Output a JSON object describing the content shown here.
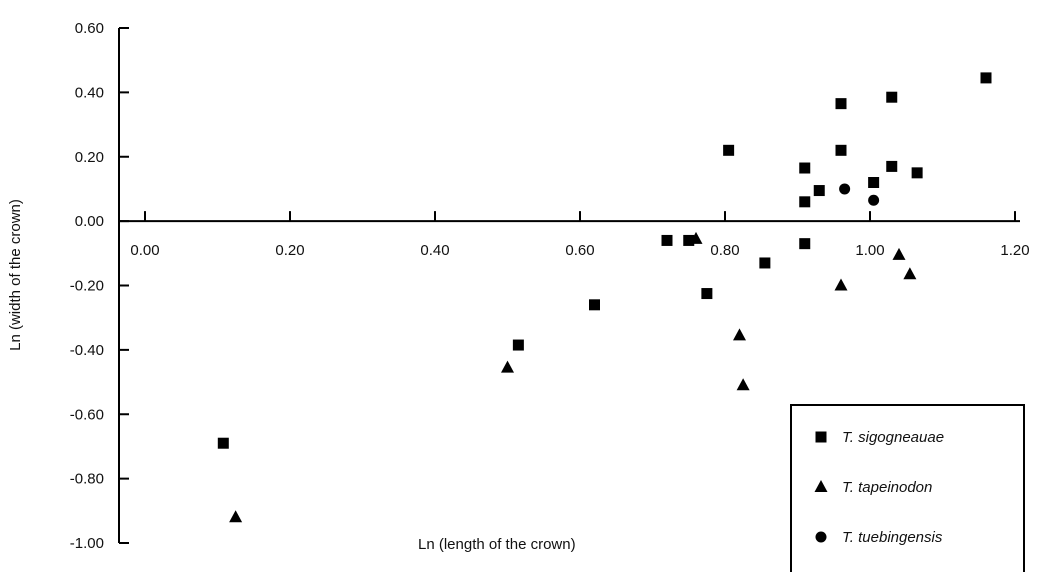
{
  "chart_data": {
    "type": "scatter",
    "xlabel": "Ln (length of the crown)",
    "ylabel": "Ln (width of the crown)",
    "xlim": [
      0.0,
      1.2
    ],
    "ylim": [
      -1.0,
      0.6
    ],
    "x_ticks": [
      "0.00",
      "0.20",
      "0.40",
      "0.60",
      "0.80",
      "1.00",
      "1.20"
    ],
    "y_ticks": [
      "0.60",
      "0.40",
      "0.20",
      "0.00",
      "-0.20",
      "-0.40",
      "-0.60",
      "-0.80",
      "-1.00"
    ],
    "grid": false,
    "legend_position": "bottom-right",
    "series": [
      {
        "name": "T. sigogneauae",
        "marker": "square",
        "points": [
          [
            0.108,
            -0.69
          ],
          [
            0.515,
            -0.385
          ],
          [
            0.62,
            -0.26
          ],
          [
            0.72,
            -0.06
          ],
          [
            0.75,
            -0.06
          ],
          [
            0.775,
            -0.225
          ],
          [
            0.805,
            0.22
          ],
          [
            0.855,
            -0.13
          ],
          [
            0.91,
            0.165
          ],
          [
            0.91,
            0.06
          ],
          [
            0.91,
            -0.07
          ],
          [
            0.93,
            0.095
          ],
          [
            0.96,
            0.365
          ],
          [
            0.96,
            0.22
          ],
          [
            1.005,
            0.12
          ],
          [
            1.03,
            0.385
          ],
          [
            1.03,
            0.17
          ],
          [
            1.065,
            0.15
          ],
          [
            1.16,
            0.445
          ]
        ]
      },
      {
        "name": "T. tapeinodon",
        "marker": "triangle",
        "points": [
          [
            0.125,
            -0.92
          ],
          [
            0.5,
            -0.455
          ],
          [
            0.76,
            -0.055
          ],
          [
            0.82,
            -0.355
          ],
          [
            0.825,
            -0.51
          ],
          [
            0.96,
            -0.2
          ],
          [
            1.04,
            -0.105
          ],
          [
            1.055,
            -0.165
          ]
        ]
      },
      {
        "name": "T. tuebingensis",
        "marker": "circle",
        "points": [
          [
            0.965,
            0.1
          ],
          [
            1.005,
            0.065
          ]
        ]
      }
    ]
  }
}
